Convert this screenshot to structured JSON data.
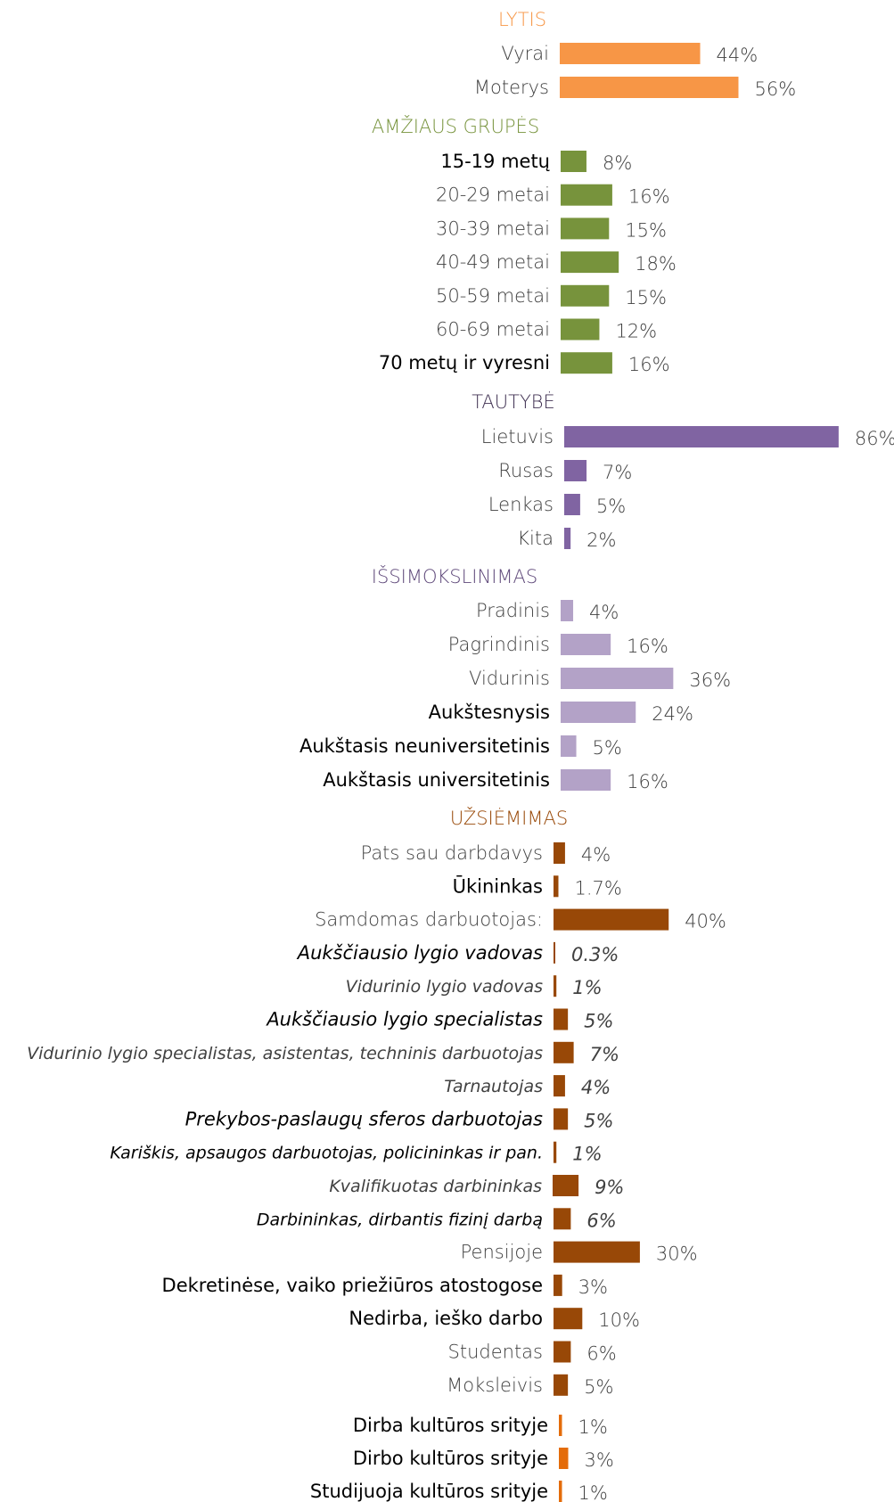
{
  "chart_data": {
    "type": "bar",
    "orientation": "horizontal",
    "value_unit": "%",
    "groups": [
      {
        "title": "LYTIS",
        "color": "#F79646",
        "items": [
          {
            "label": "Vyrai",
            "value": 44,
            "value_label": "44%"
          },
          {
            "label": "Moterys",
            "value": 56,
            "value_label": "56%"
          }
        ]
      },
      {
        "title": "AMŽIAUS GRUPĖS",
        "color": "#77933C",
        "items": [
          {
            "label": "15-19 metų",
            "value": 8,
            "value_label": "8%",
            "bold": true
          },
          {
            "label": "20-29 metai",
            "value": 16,
            "value_label": "16%"
          },
          {
            "label": "30-39 metai",
            "value": 15,
            "value_label": "15%"
          },
          {
            "label": "40-49 metai",
            "value": 18,
            "value_label": "18%"
          },
          {
            "label": "50-59 metai",
            "value": 15,
            "value_label": "15%"
          },
          {
            "label": "60-69 metai",
            "value": 12,
            "value_label": "12%"
          },
          {
            "label": "70 metų ir vyresni",
            "value": 16,
            "value_label": "16%",
            "bold": true
          }
        ]
      },
      {
        "title": "TAUTYBĖ",
        "title_color": "#403152",
        "color": "#8064A2",
        "items": [
          {
            "label": "Lietuvis",
            "value": 86,
            "value_label": "86%"
          },
          {
            "label": "Rusas",
            "value": 7,
            "value_label": "7%"
          },
          {
            "label": "Lenkas",
            "value": 5,
            "value_label": "5%"
          },
          {
            "label": "Kita",
            "value": 2,
            "value_label": "2%"
          }
        ]
      },
      {
        "title": "IŠSIMOKSLINIMAS",
        "title_color": "#5F497A",
        "color": "#B3A2C7",
        "items": [
          {
            "label": "Pradinis",
            "value": 4,
            "value_label": "4%"
          },
          {
            "label": "Pagrindinis",
            "value": 16,
            "value_label": "16%"
          },
          {
            "label": "Vidurinis",
            "value": 36,
            "value_label": "36%"
          },
          {
            "label": "Aukštesnysis",
            "value": 24,
            "value_label": "24%",
            "bold": true
          },
          {
            "label": "Aukštasis neuniversitetinis",
            "value": 5,
            "value_label": "5%",
            "bold": true
          },
          {
            "label": "Aukštasis universitetinis",
            "value": 16,
            "value_label": "16%",
            "bold": true
          }
        ]
      },
      {
        "title": "UŽSIĖMIMAS",
        "color": "#984807",
        "items": [
          {
            "label": "Pats sau darbdavys",
            "value": 4,
            "value_label": "4%"
          },
          {
            "label": "Ūkininkas",
            "value": 1.7,
            "value_label": "1.7%",
            "bold": true
          },
          {
            "label": "Samdomas darbuotojas:",
            "value": 40,
            "value_label": "40%"
          },
          {
            "label": "Aukščiausio lygio vadovas",
            "value": 0.3,
            "value_label": "0.3%",
            "italic": true,
            "bold": true
          },
          {
            "label": "Vidurinio lygio vadovas",
            "value": 1,
            "value_label": "1%",
            "italic": true,
            "small": true
          },
          {
            "label": "Aukščiausio lygio specialistas",
            "value": 5,
            "value_label": "5%",
            "italic": true,
            "bold": true
          },
          {
            "label": "Vidurinio lygio specialistas, asistentas, techninis darbuotojas",
            "value": 7,
            "value_label": "7%",
            "italic": true,
            "small": true
          },
          {
            "label": "Tarnautojas",
            "value": 4,
            "value_label": "4%",
            "italic": true,
            "small": true
          },
          {
            "label": "Prekybos-paslaugų sferos darbuotojas",
            "value": 5,
            "value_label": "5%",
            "italic": true,
            "bold": true
          },
          {
            "label": "Kariškis, apsaugos darbuotojas, policininkas ir pan.",
            "value": 1,
            "value_label": "1%",
            "italic": true,
            "bold": true,
            "small": true
          },
          {
            "label": "Kvalifikuotas darbininkas",
            "value": 9,
            "value_label": "9%",
            "italic": true,
            "small": true
          },
          {
            "label": "Darbininkas, dirbantis fizinį darbą",
            "value": 6,
            "value_label": "6%",
            "italic": true,
            "bold": true,
            "small": true
          },
          {
            "label": "Pensijoje",
            "value": 30,
            "value_label": "30%"
          },
          {
            "label": "Dekretinėse, vaiko priežiūros atostogose",
            "value": 3,
            "value_label": "3%",
            "bold": true
          },
          {
            "label": "Nedirba, ieško darbo",
            "value": 10,
            "value_label": "10%",
            "bold": true
          },
          {
            "label": "Studentas",
            "value": 6,
            "value_label": "6%"
          },
          {
            "label": "Moksleivis",
            "value": 5,
            "value_label": "5%"
          }
        ]
      },
      {
        "title": "",
        "color": "#E46C0A",
        "items": [
          {
            "label": "Dirba kultūros srityje",
            "value": 1,
            "value_label": "1%",
            "bold": true
          },
          {
            "label": "Dirbo kultūros srityje",
            "value": 3,
            "value_label": "3%",
            "bold": true
          },
          {
            "label": "Studijuoja kultūros srityje",
            "value": 1,
            "value_label": "1%",
            "bold": true
          }
        ]
      }
    ]
  }
}
